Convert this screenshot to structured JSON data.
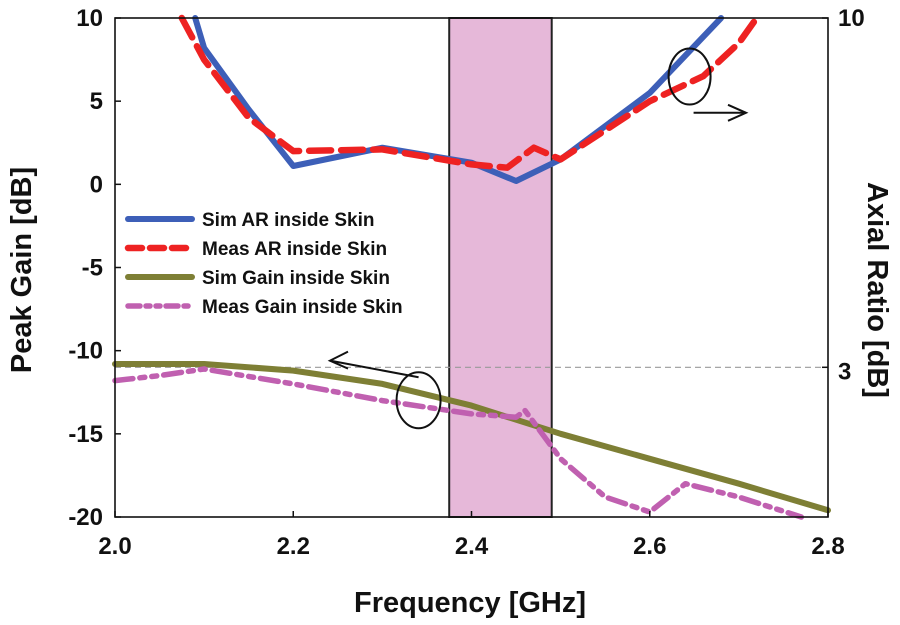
{
  "chart_data": {
    "type": "line",
    "title": "",
    "xlabel": "Frequency [GHz]",
    "ylabel_left": "Peak Gain [dB]",
    "ylabel_right": "Axial Ratio [dB]",
    "xlim": [
      2.0,
      2.8
    ],
    "ylim_left": [
      -20,
      10
    ],
    "ylim_right": [
      0,
      10
    ],
    "x_ticks": [
      "2.0",
      "2.2",
      "2.4",
      "2.6",
      "2.8"
    ],
    "y_ticks_left": [
      "10",
      "5",
      "0",
      "-5",
      "-10",
      "-15",
      "-20"
    ],
    "y_ticks_right": [
      "10",
      "3"
    ],
    "reference_line": {
      "axis": "right",
      "value": 3
    },
    "shaded_band": {
      "x_start": 2.375,
      "x_end": 2.49,
      "color": "#e6b8d9"
    },
    "legend_position": "middle-left",
    "annotations": [
      {
        "label": "AR circle",
        "at": [
          2.62,
          6.0
        ],
        "arrow_to": "right-axis"
      },
      {
        "label": "Gain circle",
        "at": [
          2.335,
          -12.8
        ],
        "arrow_to": "left-axis"
      }
    ],
    "series": [
      {
        "name": "Sim AR inside Skin",
        "axis": "left",
        "color": "#3d5fb8",
        "style": "solid",
        "x": [
          2.09,
          2.1,
          2.15,
          2.2,
          2.3,
          2.4,
          2.45,
          2.5,
          2.6,
          2.68
        ],
        "y": [
          10.0,
          8.2,
          4.5,
          1.1,
          2.2,
          1.3,
          0.2,
          1.5,
          5.5,
          10.0
        ]
      },
      {
        "name": "Meas AR inside Skin",
        "axis": "left",
        "color": "#ee2222",
        "style": "dashed",
        "x": [
          2.075,
          2.1,
          2.15,
          2.2,
          2.3,
          2.4,
          2.44,
          2.47,
          2.5,
          2.6,
          2.66,
          2.7,
          2.72
        ],
        "y": [
          10.0,
          7.5,
          4.0,
          2.0,
          2.1,
          1.2,
          1.0,
          2.2,
          1.5,
          5.0,
          6.5,
          8.5,
          10.0
        ]
      },
      {
        "name": "Sim Gain inside Skin",
        "axis": "left",
        "color": "#7e7f35",
        "style": "solid",
        "x": [
          2.0,
          2.1,
          2.2,
          2.3,
          2.4,
          2.5,
          2.6,
          2.7,
          2.8
        ],
        "y": [
          -10.8,
          -10.8,
          -11.2,
          -12.0,
          -13.3,
          -15.0,
          -16.5,
          -18.0,
          -19.6
        ]
      },
      {
        "name": "Meas Gain inside Skin",
        "axis": "left",
        "color": "#c060b0",
        "style": "dash-dot-dot",
        "x": [
          2.0,
          2.05,
          2.1,
          2.2,
          2.3,
          2.4,
          2.45,
          2.46,
          2.5,
          2.55,
          2.6,
          2.64,
          2.7,
          2.77
        ],
        "y": [
          -11.8,
          -11.5,
          -11.1,
          -12.0,
          -13.0,
          -13.8,
          -14.0,
          -13.6,
          -16.5,
          -18.8,
          -19.7,
          -18.0,
          -18.8,
          -20.0
        ]
      }
    ]
  }
}
